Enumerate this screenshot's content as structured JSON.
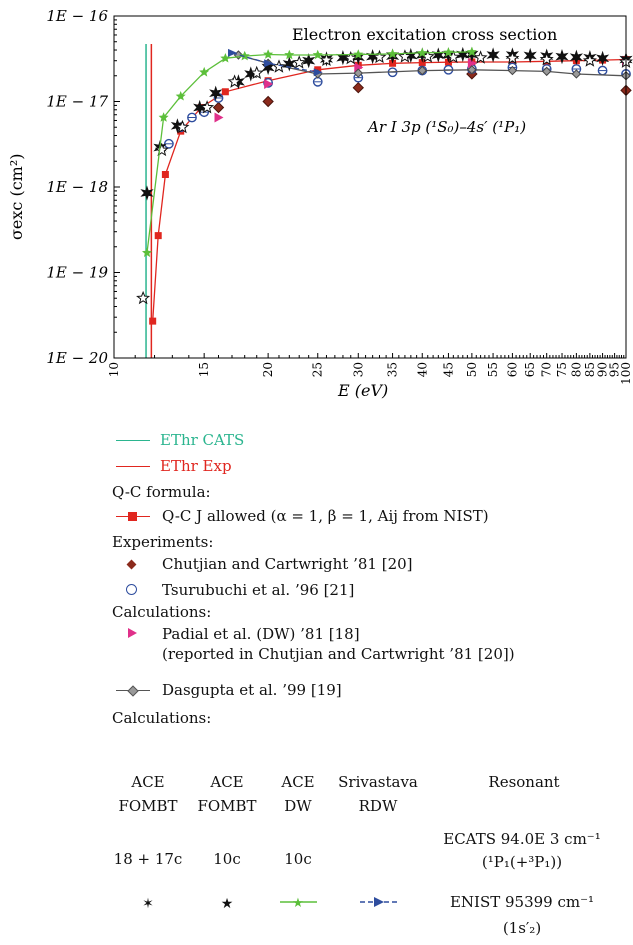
{
  "chart_data": {
    "type": "scatter",
    "title": "Electron excitation cross section",
    "annotation": "Ar I 3p (¹S₀)–4s′ (¹P₁)",
    "xlabel": "E (eV)",
    "ylabel": "σexc (cm²)",
    "x_scale": "log",
    "y_scale": "log",
    "xlim": [
      10,
      100
    ],
    "ylim": [
      1e-20,
      1e-16
    ],
    "x_ticks": [
      "10",
      "15",
      "20",
      "25",
      "30",
      "35",
      "40",
      "45",
      "50",
      "55",
      "60",
      "65",
      "70",
      "75",
      "80",
      "85",
      "90",
      "95",
      "100"
    ],
    "y_ticks": [
      "1E − 16",
      "1E − 17",
      "1E − 18",
      "1E − 19",
      "1E − 20"
    ],
    "vertical_lines": [
      {
        "name": "EThr CATS",
        "x": 11.55,
        "color": "#2bb58f"
      },
      {
        "name": "EThr Exp",
        "x": 11.83,
        "color": "#e0261f"
      }
    ],
    "series": [
      {
        "name": "Q-C J allowed (α = 1, β = 1, Aij from NIST)",
        "kind": "line-square",
        "color": "#e0261f",
        "x": [
          11.9,
          12.2,
          12.6,
          13.5,
          14.8,
          16.5,
          20,
          25,
          30,
          35,
          40,
          45,
          50,
          60,
          70,
          80,
          90,
          100
        ],
        "y": [
          2.7e-20,
          2.7e-19,
          1.4e-18,
          4.5e-18,
          8.5e-18,
          1.3e-17,
          1.75e-17,
          2.35e-17,
          2.65e-17,
          2.8e-17,
          2.85e-17,
          2.88e-17,
          2.9e-17,
          2.9e-17,
          2.95e-17,
          3e-17,
          3.05e-17,
          3.1e-17
        ]
      },
      {
        "name": "Chutjian and Cartwright ’81 [20]",
        "kind": "diamond",
        "color": "#8b2a1c",
        "x": [
          16,
          20,
          30,
          50,
          100
        ],
        "y": [
          8.5e-18,
          1e-17,
          1.45e-17,
          2.1e-17,
          1.35e-17
        ]
      },
      {
        "name": "Tsurubuchi et al. ’96 [21]",
        "kind": "circle",
        "color": "#2e4d9e",
        "x": [
          12.8,
          13.5,
          14.2,
          15,
          16,
          20,
          25,
          30,
          35,
          40,
          45,
          50,
          60,
          70,
          80,
          90,
          100
        ],
        "y": [
          3.2e-18,
          5e-18,
          6.5e-18,
          7.5e-18,
          1.1e-17,
          1.65e-17,
          1.7e-17,
          1.9e-17,
          2.2e-17,
          2.3e-17,
          2.35e-17,
          2.4e-17,
          2.5e-17,
          2.4e-17,
          2.4e-17,
          2.3e-17,
          2.1e-17
        ]
      },
      {
        "name": "Padial et al. (DW) ’81 [18]",
        "kind": "triangle-right",
        "color": "#e0308a",
        "x": [
          16,
          20,
          30,
          50,
          100
        ],
        "y": [
          6.5e-18,
          1.6e-17,
          2.5e-17,
          2.8e-17,
          3e-17
        ]
      },
      {
        "name": "Dasgupta et al. ’99 [19]",
        "kind": "line-diamond",
        "color": "#555555",
        "x": [
          17.5,
          20,
          25,
          30,
          40,
          50,
          60,
          70,
          80,
          100
        ],
        "y": [
          3.5e-17,
          2.8e-17,
          2.1e-17,
          2.15e-17,
          2.3e-17,
          2.35e-17,
          2.3e-17,
          2.25e-17,
          2.1e-17,
          2e-17
        ]
      },
      {
        "name": "ACE FOMBT 18 + 17c",
        "kind": "star6",
        "color": "#111111",
        "x": [
          11.6,
          12.3,
          13.3,
          14.7,
          15.8,
          17.5,
          18.5,
          20,
          22,
          24,
          26,
          28,
          30,
          32,
          35,
          38,
          40,
          43,
          45,
          48,
          50,
          55,
          60,
          65,
          70,
          75,
          80,
          85,
          90,
          100
        ],
        "y": [
          8.5e-19,
          2.9e-18,
          5.2e-18,
          8.5e-18,
          1.25e-17,
          1.7e-17,
          2.1e-17,
          2.5e-17,
          2.75e-17,
          3e-17,
          3.15e-17,
          3.25e-17,
          3.3e-17,
          3.35e-17,
          3.4e-17,
          3.45e-17,
          3.5e-17,
          3.5e-17,
          3.5e-17,
          3.55e-17,
          3.55e-17,
          3.5e-17,
          3.5e-17,
          3.45e-17,
          3.4e-17,
          3.35e-17,
          3.3e-17,
          3.25e-17,
          3.2e-17,
          3.1e-17
        ]
      },
      {
        "name": "ACE FOMBT 10c",
        "kind": "star5",
        "color": "#111111",
        "x": [
          11.4,
          12.4,
          13.6,
          15.2,
          17.2,
          19,
          21,
          23,
          26,
          29,
          33,
          37,
          41,
          46,
          52,
          60,
          70,
          85,
          100
        ],
        "y": [
          5e-20,
          2.7e-18,
          5e-18,
          8.5e-18,
          1.7e-17,
          2.15e-17,
          2.55e-17,
          2.85e-17,
          3.05e-17,
          3.2e-17,
          3.3e-17,
          3.35e-17,
          3.35e-17,
          3.3e-17,
          3.25e-17,
          3.2e-17,
          3.1e-17,
          3e-17,
          2.9e-17
        ]
      },
      {
        "name": "ACE DW 10c",
        "kind": "line-star",
        "color": "#5cbf3a",
        "x": [
          11.6,
          12.5,
          13.5,
          15,
          16.5,
          18,
          20,
          22,
          25,
          30,
          35,
          40,
          45,
          50
        ],
        "y": [
          1.7e-19,
          6.5e-18,
          1.15e-17,
          2.2e-17,
          3.2e-17,
          3.4e-17,
          3.55e-17,
          3.5e-17,
          3.5e-17,
          3.55e-17,
          3.6e-17,
          3.7e-17,
          3.75e-17,
          3.8e-17
        ]
      },
      {
        "name": "Srivastava RDW",
        "kind": "line-triangle",
        "color": "#2e4d9e",
        "x": [
          17,
          20,
          25
        ],
        "y": [
          3.7e-17,
          2.8e-17,
          2.2e-17
        ]
      }
    ]
  },
  "legend": {
    "ethr_cats": "EThr CATS",
    "ethr_exp": "EThr Exp",
    "qc_header": "Q-C formula:",
    "qc_item": "Q-C J allowed (α = 1,  β = 1, Aij from NIST)",
    "exp_header": "Experiments:",
    "exp1": "Chutjian and Cartwright ’81 [20]",
    "exp2": "Tsurubuchi et al. ’96 [21]",
    "calc_header": "Calculations:",
    "calc1": "Padial et al. (DW) ’81 [18]",
    "calc1b": "(reported in Chutjian and Cartwright ’81 [20])",
    "calc2": "Dasgupta et al. ’99 [19]",
    "calc_header2": "Calculations:"
  },
  "table": {
    "col1a": "ACE",
    "col1b": "FOMBT",
    "col1c": "18 + 17c",
    "col2a": "ACE",
    "col2b": "FOMBT",
    "col2c": "10c",
    "col3a": "ACE",
    "col3b": "DW",
    "col3c": "10c",
    "col4a": "Srivastava",
    "col4b": "RDW",
    "col5a": "Resonant",
    "col5b": "ECATS 94.0E 3 cm⁻¹",
    "col5c": "(¹P₁(+³P₁))",
    "col5d": "ENIST 95399 cm⁻¹",
    "col5e": "(1s′₂)"
  }
}
